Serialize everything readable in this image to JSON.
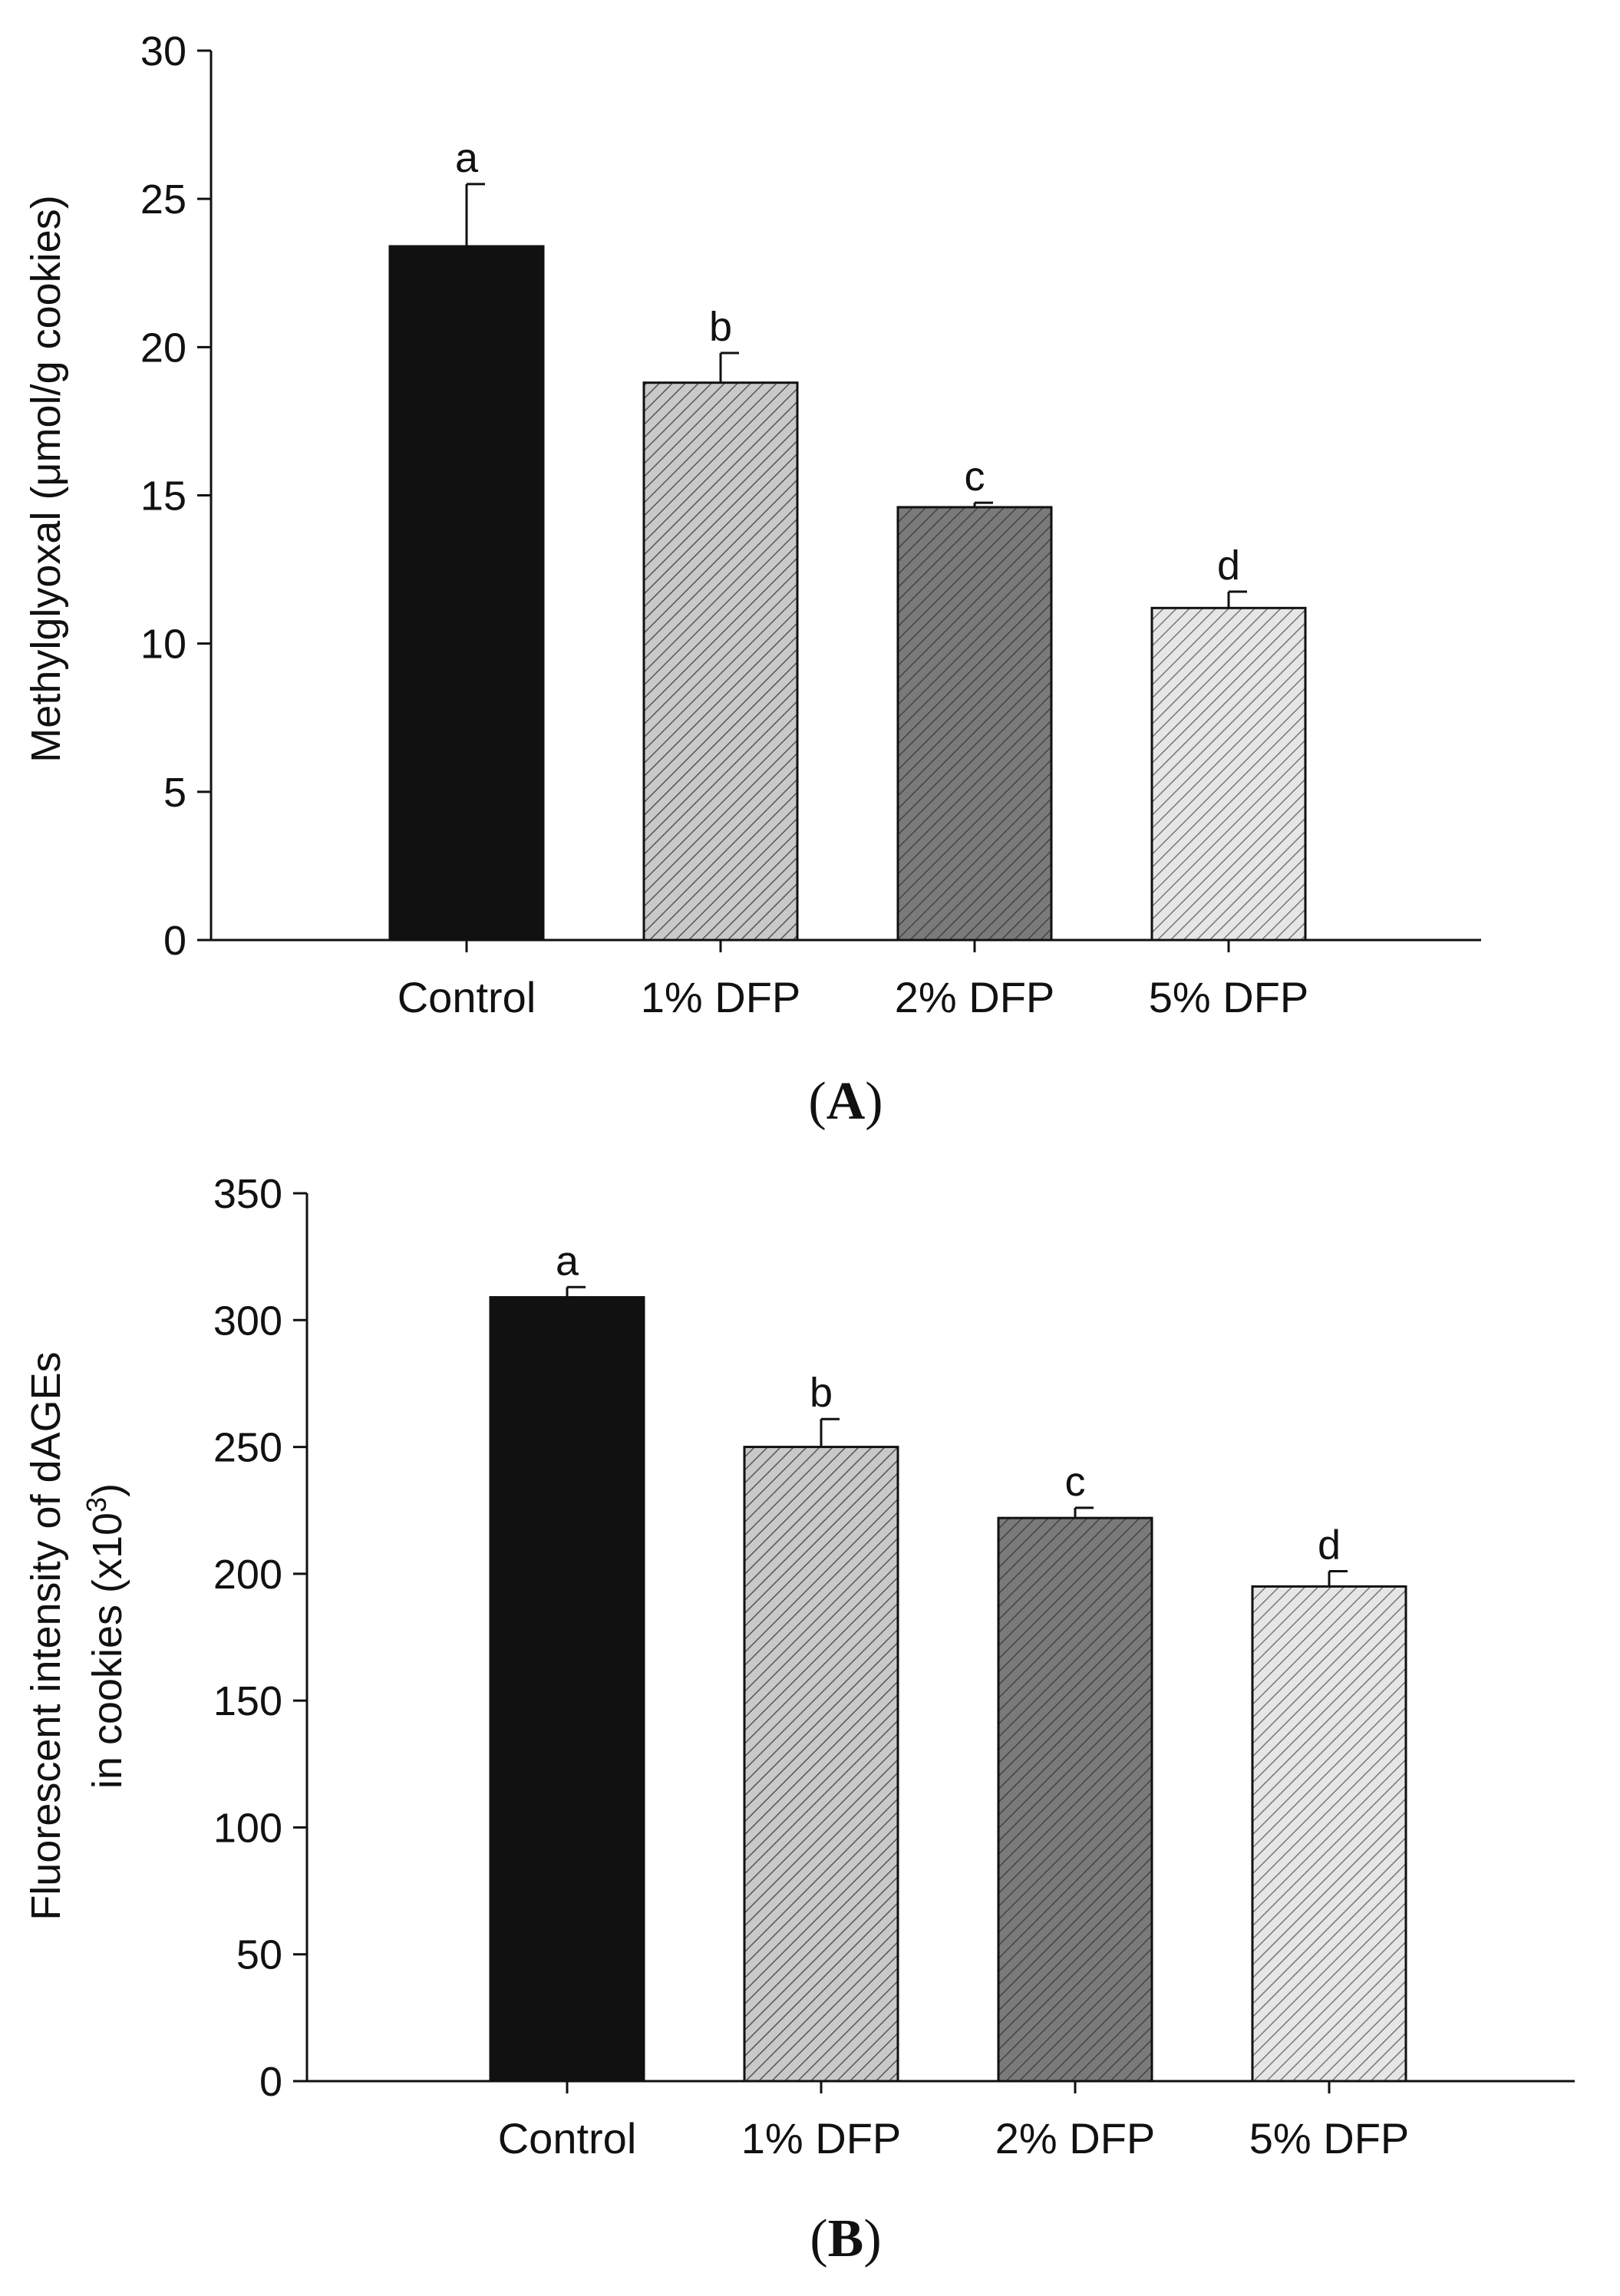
{
  "chart_data": [
    {
      "type": "bar",
      "panel": "A",
      "categories": [
        "Control",
        "1% DFP",
        "2% DFP",
        "5% DFP"
      ],
      "values": [
        23.4,
        18.8,
        14.6,
        11.2
      ],
      "errors": [
        2.1,
        1.0,
        0.15,
        0.55
      ],
      "significance": [
        "a",
        "b",
        "c",
        "d"
      ],
      "fills": [
        "#111111",
        "#c9c9c9",
        "#7a7a7a",
        "#e6e6e6"
      ],
      "hatched": [
        false,
        true,
        true,
        true
      ],
      "ylabel": "Methylglyoxal (μmol/g cookies)",
      "ylim": [
        0,
        30
      ],
      "yticks": [
        0,
        5,
        10,
        15,
        20,
        25,
        30
      ]
    },
    {
      "type": "bar",
      "panel": "B",
      "categories": [
        "Control",
        "1% DFP",
        "2% DFP",
        "5% DFP"
      ],
      "values": [
        309,
        250,
        222,
        195
      ],
      "errors": [
        4,
        11,
        4,
        6
      ],
      "significance": [
        "a",
        "b",
        "c",
        "d"
      ],
      "fills": [
        "#111111",
        "#c9c9c9",
        "#7a7a7a",
        "#e6e6e6"
      ],
      "hatched": [
        false,
        true,
        true,
        true
      ],
      "ylabel_line1": "Fluorescent intensity of dAGEs",
      "ylabel_line2_prefix": "in cookies (x10",
      "ylabel_line2_sup": "3",
      "ylabel_line2_suffix": ")",
      "ylim": [
        0,
        350
      ],
      "yticks": [
        0,
        50,
        100,
        150,
        200,
        250,
        300,
        350
      ]
    }
  ],
  "panels": [
    {
      "open": "(",
      "letter": "A",
      "close": ")"
    },
    {
      "open": "(",
      "letter": "B",
      "close": ")"
    }
  ],
  "colors": {
    "axis": "#111111",
    "hatch": "#555555",
    "background": "#ffffff"
  }
}
